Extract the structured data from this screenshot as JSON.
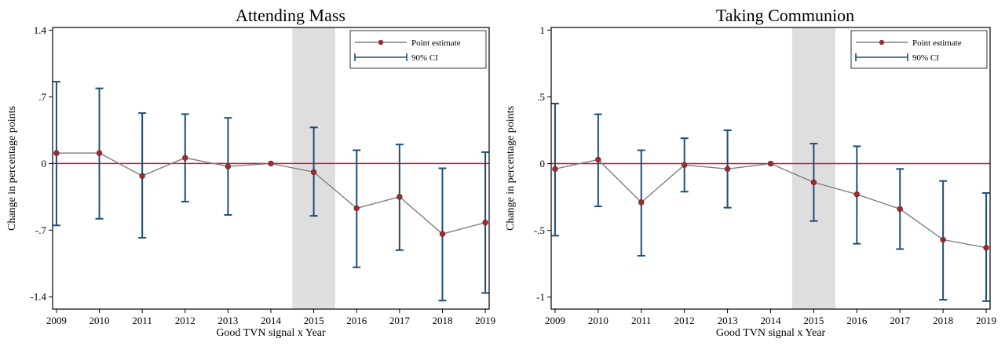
{
  "colors": {
    "point": "#9b2d30",
    "line": "#7f7f7f",
    "ci": "#1f4e79",
    "zero_line": "#c8103e",
    "shade": "#dedede",
    "frame": "#000000"
  },
  "legend": {
    "point_label": "Point estimate",
    "ci_label": "90% CI",
    "placement": "top-right"
  },
  "chart_data": [
    {
      "type": "line",
      "title": "Attending Mass",
      "xlabel": "Good TVN signal x Year",
      "ylabel": "Change in percentage points",
      "x": [
        2009,
        2010,
        2011,
        2012,
        2013,
        2014,
        2015,
        2016,
        2017,
        2018,
        2019
      ],
      "ylim": [
        -1.53,
        1.43
      ],
      "yticks": [
        1.4,
        0.7,
        0,
        -0.7,
        -1.4
      ],
      "ytick_labels": [
        "1.4",
        ".7",
        "0",
        "-.7",
        "-1.4"
      ],
      "shade_x": [
        2014.5,
        2015.5
      ],
      "reference_y": 0,
      "series": [
        {
          "kind": "point_estimate",
          "values": [
            0.11,
            0.11,
            -0.13,
            0.06,
            -0.03,
            0.0,
            -0.09,
            -0.47,
            -0.35,
            -0.74,
            -0.62
          ]
        },
        {
          "kind": "ci",
          "lower": [
            -0.65,
            -0.58,
            -0.78,
            -0.4,
            -0.54,
            0.0,
            -0.55,
            -1.09,
            -0.91,
            -1.44,
            -1.36
          ],
          "upper": [
            0.86,
            0.79,
            0.53,
            0.52,
            0.48,
            0.0,
            0.38,
            0.14,
            0.2,
            -0.05,
            0.12
          ]
        }
      ]
    },
    {
      "type": "line",
      "title": "Taking Communion",
      "xlabel": "Good TVN signal x Year",
      "ylabel": "Change in percentage points",
      "x": [
        2009,
        2010,
        2011,
        2012,
        2013,
        2014,
        2015,
        2016,
        2017,
        2018,
        2019
      ],
      "ylim": [
        -1.09,
        1.02
      ],
      "yticks": [
        1,
        0.5,
        0,
        -0.5,
        -1
      ],
      "ytick_labels": [
        "1",
        ".5",
        "0",
        "-.5",
        "-1"
      ],
      "shade_x": [
        2014.5,
        2015.5
      ],
      "reference_y": 0,
      "series": [
        {
          "kind": "point_estimate",
          "values": [
            -0.04,
            0.03,
            -0.29,
            -0.01,
            -0.04,
            0.0,
            -0.14,
            -0.23,
            -0.34,
            -0.57,
            -0.63
          ]
        },
        {
          "kind": "ci",
          "lower": [
            -0.54,
            -0.32,
            -0.69,
            -0.21,
            -0.33,
            0.0,
            -0.43,
            -0.6,
            -0.64,
            -1.02,
            -1.03
          ],
          "upper": [
            0.45,
            0.37,
            0.1,
            0.19,
            0.25,
            0.0,
            0.15,
            0.13,
            -0.04,
            -0.13,
            -0.22
          ]
        }
      ]
    }
  ]
}
